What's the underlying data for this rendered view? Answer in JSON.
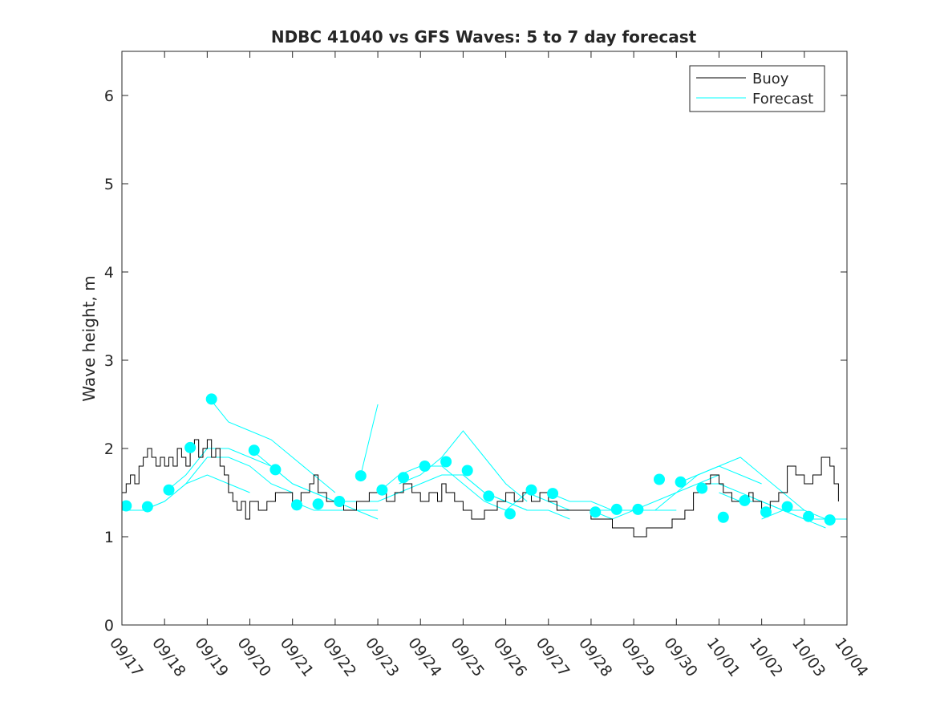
{
  "chart_data": {
    "type": "line",
    "title": "NDBC 41040 vs GFS Waves: 5 to 7 day forecast",
    "xlabel": "",
    "ylabel": "Wave height, m",
    "xlim": [
      0,
      17
    ],
    "ylim": [
      0,
      6.5
    ],
    "yticks": [
      0,
      1,
      2,
      3,
      4,
      5,
      6
    ],
    "xtick_labels": [
      "09/17",
      "09/18",
      "09/19",
      "09/20",
      "09/21",
      "09/22",
      "09/23",
      "09/24",
      "09/25",
      "09/26",
      "09/27",
      "09/28",
      "09/29",
      "09/30",
      "10/01",
      "10/02",
      "10/03",
      "10/04"
    ],
    "legend": {
      "placement": "top-right",
      "entries": [
        {
          "label": "Buoy",
          "color": "#000000"
        },
        {
          "label": "Forecast",
          "color": "#00ffff"
        }
      ]
    },
    "series": [
      {
        "name": "Buoy",
        "color": "#000000",
        "points": [
          [
            0.0,
            1.5
          ],
          [
            0.1,
            1.6
          ],
          [
            0.2,
            1.7
          ],
          [
            0.3,
            1.6
          ],
          [
            0.4,
            1.8
          ],
          [
            0.5,
            1.9
          ],
          [
            0.6,
            2.0
          ],
          [
            0.7,
            1.9
          ],
          [
            0.8,
            1.8
          ],
          [
            0.9,
            1.9
          ],
          [
            1.0,
            1.8
          ],
          [
            1.1,
            1.9
          ],
          [
            1.2,
            1.8
          ],
          [
            1.3,
            2.0
          ],
          [
            1.4,
            1.9
          ],
          [
            1.5,
            1.8
          ],
          [
            1.6,
            2.0
          ],
          [
            1.7,
            2.1
          ],
          [
            1.8,
            1.9
          ],
          [
            1.9,
            2.0
          ],
          [
            2.0,
            2.1
          ],
          [
            2.1,
            1.9
          ],
          [
            2.2,
            2.0
          ],
          [
            2.3,
            1.8
          ],
          [
            2.4,
            1.7
          ],
          [
            2.5,
            1.5
          ],
          [
            2.6,
            1.4
          ],
          [
            2.7,
            1.3
          ],
          [
            2.8,
            1.4
          ],
          [
            2.9,
            1.2
          ],
          [
            3.0,
            1.4
          ],
          [
            3.2,
            1.3
          ],
          [
            3.4,
            1.4
          ],
          [
            3.6,
            1.5
          ],
          [
            3.8,
            1.5
          ],
          [
            4.0,
            1.4
          ],
          [
            4.2,
            1.5
          ],
          [
            4.4,
            1.6
          ],
          [
            4.5,
            1.7
          ],
          [
            4.6,
            1.5
          ],
          [
            4.8,
            1.4
          ],
          [
            5.0,
            1.4
          ],
          [
            5.2,
            1.3
          ],
          [
            5.5,
            1.4
          ],
          [
            5.8,
            1.5
          ],
          [
            6.0,
            1.5
          ],
          [
            6.2,
            1.4
          ],
          [
            6.4,
            1.5
          ],
          [
            6.6,
            1.6
          ],
          [
            6.8,
            1.5
          ],
          [
            7.0,
            1.4
          ],
          [
            7.2,
            1.5
          ],
          [
            7.4,
            1.4
          ],
          [
            7.5,
            1.6
          ],
          [
            7.6,
            1.5
          ],
          [
            7.8,
            1.4
          ],
          [
            8.0,
            1.3
          ],
          [
            8.2,
            1.2
          ],
          [
            8.5,
            1.3
          ],
          [
            8.8,
            1.4
          ],
          [
            9.0,
            1.5
          ],
          [
            9.2,
            1.4
          ],
          [
            9.4,
            1.5
          ],
          [
            9.6,
            1.4
          ],
          [
            9.8,
            1.5
          ],
          [
            10.0,
            1.4
          ],
          [
            10.2,
            1.3
          ],
          [
            10.5,
            1.3
          ],
          [
            11.0,
            1.2
          ],
          [
            11.2,
            1.2
          ],
          [
            11.5,
            1.1
          ],
          [
            11.8,
            1.1
          ],
          [
            12.0,
            1.0
          ],
          [
            12.3,
            1.1
          ],
          [
            12.6,
            1.1
          ],
          [
            12.9,
            1.2
          ],
          [
            13.0,
            1.2
          ],
          [
            13.2,
            1.3
          ],
          [
            13.4,
            1.5
          ],
          [
            13.6,
            1.6
          ],
          [
            13.8,
            1.7
          ],
          [
            14.0,
            1.6
          ],
          [
            14.1,
            1.5
          ],
          [
            14.3,
            1.4
          ],
          [
            14.5,
            1.4
          ],
          [
            14.7,
            1.5
          ],
          [
            14.8,
            1.4
          ],
          [
            15.0,
            1.3
          ],
          [
            15.2,
            1.4
          ],
          [
            15.4,
            1.5
          ],
          [
            15.6,
            1.8
          ],
          [
            15.8,
            1.7
          ],
          [
            16.0,
            1.6
          ],
          [
            16.2,
            1.7
          ],
          [
            16.4,
            1.9
          ],
          [
            16.6,
            1.8
          ],
          [
            16.7,
            1.6
          ],
          [
            16.8,
            1.4
          ]
        ]
      },
      {
        "name": "Forecast",
        "color": "#00ffff",
        "segments": [
          [
            [
              0.0,
              1.3
            ],
            [
              0.5,
              1.3
            ],
            [
              1.0,
              1.4
            ],
            [
              1.5,
              1.6
            ],
            [
              2.0,
              1.7
            ],
            [
              2.5,
              1.6
            ],
            [
              3.0,
              1.5
            ]
          ],
          [
            [
              0.5,
              1.3
            ],
            [
              1.0,
              1.4
            ],
            [
              1.5,
              1.6
            ],
            [
              2.0,
              1.9
            ],
            [
              2.5,
              1.9
            ],
            [
              3.0,
              1.8
            ],
            [
              3.5,
              1.6
            ],
            [
              4.0,
              1.5
            ]
          ],
          [
            [
              1.0,
              1.5
            ],
            [
              1.5,
              1.7
            ],
            [
              2.0,
              2.0
            ],
            [
              2.5,
              2.0
            ],
            [
              3.0,
              1.9
            ],
            [
              3.5,
              1.8
            ],
            [
              4.0,
              1.6
            ],
            [
              4.5,
              1.5
            ],
            [
              5.0,
              1.4
            ]
          ],
          [
            [
              2.0,
              2.6
            ],
            [
              2.5,
              2.3
            ],
            [
              3.0,
              2.2
            ],
            [
              3.5,
              2.1
            ],
            [
              4.0,
              1.9
            ],
            [
              4.5,
              1.7
            ],
            [
              5.0,
              1.5
            ]
          ],
          [
            [
              3.0,
              2.0
            ],
            [
              3.5,
              1.8
            ],
            [
              4.0,
              1.6
            ],
            [
              4.5,
              1.5
            ],
            [
              5.0,
              1.4
            ],
            [
              5.5,
              1.3
            ],
            [
              6.0,
              1.2
            ]
          ],
          [
            [
              4.0,
              1.4
            ],
            [
              4.5,
              1.3
            ],
            [
              5.0,
              1.3
            ],
            [
              5.5,
              1.3
            ],
            [
              6.0,
              1.3
            ]
          ],
          [
            [
              5.0,
              1.4
            ],
            [
              5.5,
              1.4
            ],
            [
              6.0,
              1.4
            ],
            [
              6.5,
              1.5
            ],
            [
              7.0,
              1.6
            ]
          ],
          [
            [
              5.6,
              1.7
            ],
            [
              5.9,
              2.3
            ],
            [
              6.0,
              2.5
            ]
          ],
          [
            [
              6.0,
              1.5
            ],
            [
              6.5,
              1.7
            ],
            [
              7.0,
              1.8
            ],
            [
              7.5,
              1.8
            ],
            [
              8.0,
              1.6
            ],
            [
              8.5,
              1.4
            ],
            [
              9.0,
              1.3
            ]
          ],
          [
            [
              6.5,
              1.6
            ],
            [
              7.0,
              1.7
            ],
            [
              7.5,
              1.9
            ],
            [
              8.0,
              2.2
            ],
            [
              8.5,
              1.9
            ],
            [
              9.0,
              1.6
            ],
            [
              9.5,
              1.4
            ]
          ],
          [
            [
              7.0,
              1.6
            ],
            [
              7.5,
              1.7
            ],
            [
              8.0,
              1.7
            ],
            [
              8.5,
              1.5
            ],
            [
              9.0,
              1.4
            ],
            [
              9.5,
              1.3
            ]
          ],
          [
            [
              8.0,
              1.7
            ],
            [
              8.5,
              1.5
            ],
            [
              9.0,
              1.4
            ],
            [
              9.5,
              1.3
            ],
            [
              10.0,
              1.3
            ],
            [
              10.5,
              1.2
            ]
          ],
          [
            [
              9.0,
              1.3
            ],
            [
              9.5,
              1.5
            ],
            [
              10.0,
              1.4
            ],
            [
              10.5,
              1.3
            ],
            [
              11.0,
              1.3
            ],
            [
              11.5,
              1.2
            ],
            [
              12.0,
              1.3
            ]
          ],
          [
            [
              10.0,
              1.5
            ],
            [
              10.5,
              1.4
            ],
            [
              11.0,
              1.4
            ],
            [
              11.5,
              1.3
            ],
            [
              12.0,
              1.3
            ],
            [
              12.5,
              1.3
            ],
            [
              13.0,
              1.3
            ]
          ],
          [
            [
              11.0,
              1.3
            ],
            [
              11.5,
              1.3
            ],
            [
              12.0,
              1.3
            ],
            [
              12.5,
              1.4
            ],
            [
              13.0,
              1.5
            ],
            [
              13.5,
              1.6
            ],
            [
              14.0,
              1.7
            ]
          ],
          [
            [
              12.0,
              1.3
            ],
            [
              12.5,
              1.3
            ],
            [
              13.0,
              1.5
            ],
            [
              13.5,
              1.7
            ],
            [
              14.0,
              1.8
            ],
            [
              14.5,
              1.7
            ],
            [
              15.0,
              1.6
            ]
          ],
          [
            [
              13.0,
              1.6
            ],
            [
              13.5,
              1.7
            ],
            [
              14.0,
              1.8
            ],
            [
              14.5,
              1.9
            ],
            [
              15.0,
              1.7
            ],
            [
              15.5,
              1.5
            ],
            [
              16.0,
              1.3
            ]
          ],
          [
            [
              13.5,
              1.6
            ],
            [
              14.0,
              1.6
            ],
            [
              14.5,
              1.5
            ],
            [
              15.0,
              1.4
            ],
            [
              15.5,
              1.3
            ],
            [
              16.0,
              1.2
            ],
            [
              16.5,
              1.1
            ]
          ],
          [
            [
              14.0,
              1.5
            ],
            [
              14.5,
              1.4
            ],
            [
              15.0,
              1.4
            ],
            [
              15.5,
              1.3
            ],
            [
              16.0,
              1.2
            ],
            [
              16.5,
              1.2
            ],
            [
              17.0,
              1.2
            ]
          ],
          [
            [
              15.0,
              1.2
            ],
            [
              15.5,
              1.3
            ],
            [
              16.0,
              1.3
            ],
            [
              16.5,
              1.2
            ],
            [
              17.0,
              1.2
            ]
          ]
        ],
        "markers": [
          [
            0.1,
            1.35
          ],
          [
            0.6,
            1.34
          ],
          [
            1.1,
            1.53
          ],
          [
            1.6,
            2.01
          ],
          [
            2.1,
            2.56
          ],
          [
            3.1,
            1.98
          ],
          [
            3.6,
            1.76
          ],
          [
            4.1,
            1.36
          ],
          [
            4.6,
            1.37
          ],
          [
            5.1,
            1.4
          ],
          [
            5.6,
            1.69
          ],
          [
            6.1,
            1.53
          ],
          [
            6.6,
            1.67
          ],
          [
            7.1,
            1.8
          ],
          [
            7.6,
            1.85
          ],
          [
            8.1,
            1.75
          ],
          [
            8.6,
            1.46
          ],
          [
            9.1,
            1.26
          ],
          [
            9.6,
            1.53
          ],
          [
            10.1,
            1.49
          ],
          [
            11.1,
            1.28
          ],
          [
            11.6,
            1.31
          ],
          [
            12.1,
            1.31
          ],
          [
            12.6,
            1.65
          ],
          [
            13.1,
            1.62
          ],
          [
            13.6,
            1.55
          ],
          [
            14.1,
            1.22
          ],
          [
            14.6,
            1.41
          ],
          [
            15.1,
            1.28
          ],
          [
            15.6,
            1.34
          ],
          [
            16.1,
            1.23
          ],
          [
            16.6,
            1.19
          ]
        ]
      }
    ]
  }
}
